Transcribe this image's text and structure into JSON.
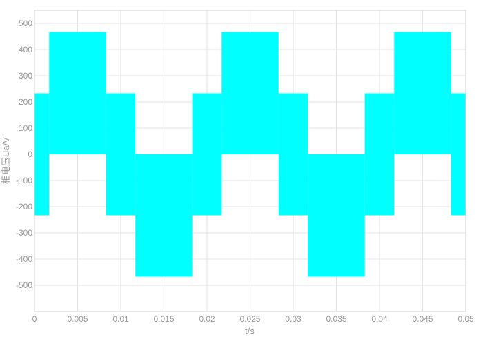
{
  "chart_data": {
    "type": "area",
    "title": "",
    "xlabel": "t/s",
    "ylabel": "相电压Ua/V",
    "xlim": [
      0,
      0.05
    ],
    "ylim": [
      -600,
      550
    ],
    "xticks": [
      0,
      0.005,
      0.01,
      0.015,
      0.02,
      0.025,
      0.03,
      0.035,
      0.04,
      0.045,
      0.05
    ],
    "xtick_labels": [
      "0",
      "0.005",
      "0.01",
      "0.015",
      "0.02",
      "0.025",
      "0.03",
      "0.035",
      "0.04",
      "0.045",
      "0.05"
    ],
    "yticks": [
      500,
      400,
      300,
      200,
      100,
      0,
      -100,
      -200,
      -300,
      -400,
      -500
    ],
    "ytick_labels": [
      "500",
      "400",
      "300",
      "200",
      "100",
      "0",
      "-100",
      "-200",
      "-300",
      "-400",
      "-500"
    ],
    "grid": true,
    "legend": "none",
    "series_color": "#00ffff",
    "series": [
      {
        "bands": [
          {
            "t0": 0.0,
            "t1": 0.0017,
            "lo": -233,
            "hi": 233
          },
          {
            "t0": 0.0017,
            "t1": 0.0083,
            "lo": 0,
            "hi": 467
          },
          {
            "t0": 0.0083,
            "t1": 0.0117,
            "lo": -233,
            "hi": 233
          },
          {
            "t0": 0.0117,
            "t1": 0.0183,
            "lo": -467,
            "hi": 0
          },
          {
            "t0": 0.0183,
            "t1": 0.0217,
            "lo": -233,
            "hi": 233
          },
          {
            "t0": 0.0217,
            "t1": 0.0283,
            "lo": 0,
            "hi": 467
          },
          {
            "t0": 0.0283,
            "t1": 0.0317,
            "lo": -233,
            "hi": 233
          },
          {
            "t0": 0.0317,
            "t1": 0.0383,
            "lo": -467,
            "hi": 0
          },
          {
            "t0": 0.0383,
            "t1": 0.0417,
            "lo": -233,
            "hi": 233
          },
          {
            "t0": 0.0417,
            "t1": 0.0483,
            "lo": 0,
            "hi": 467
          },
          {
            "t0": 0.0483,
            "t1": 0.05,
            "lo": -233,
            "hi": 233
          }
        ]
      }
    ]
  }
}
